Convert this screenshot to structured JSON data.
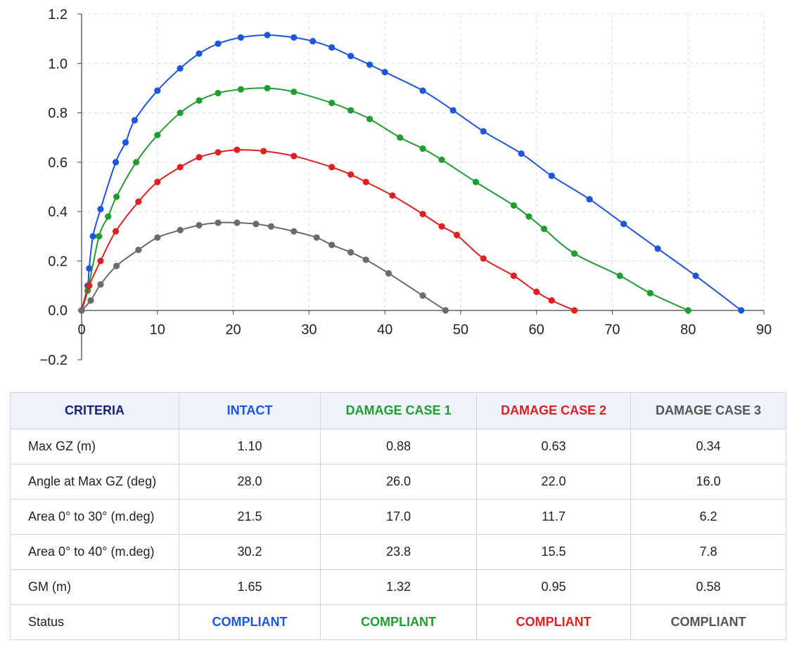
{
  "chart_data": {
    "type": "line",
    "title": "",
    "xlabel": "",
    "ylabel": "",
    "xlim": [
      0,
      90
    ],
    "ylim": [
      -0.2,
      1.2
    ],
    "x_ticks": [
      "0",
      "10",
      "20",
      "30",
      "40",
      "50",
      "60",
      "70",
      "80",
      "90"
    ],
    "y_ticks": [
      "−0.2",
      "0.0",
      "0.2",
      "0.4",
      "0.6",
      "0.8",
      "1.0",
      "1.2"
    ],
    "grid": true,
    "series": [
      {
        "color": "#1a56e0",
        "points": [
          [
            0,
            0
          ],
          [
            0.8,
            0.1
          ],
          [
            1,
            0.17
          ],
          [
            1.5,
            0.3
          ],
          [
            2.5,
            0.41
          ],
          [
            4.5,
            0.6
          ],
          [
            5.8,
            0.68
          ],
          [
            7,
            0.77
          ],
          [
            10,
            0.89
          ],
          [
            13,
            0.98
          ],
          [
            15.5,
            1.04
          ],
          [
            18,
            1.08
          ],
          [
            21,
            1.105
          ],
          [
            24.5,
            1.115
          ],
          [
            28,
            1.105
          ],
          [
            30.5,
            1.09
          ],
          [
            33,
            1.065
          ],
          [
            35.5,
            1.03
          ],
          [
            38,
            0.995
          ],
          [
            40,
            0.965
          ],
          [
            45,
            0.89
          ],
          [
            49,
            0.81
          ],
          [
            53,
            0.725
          ],
          [
            58,
            0.635
          ],
          [
            62,
            0.545
          ],
          [
            67,
            0.45
          ],
          [
            71.5,
            0.35
          ],
          [
            76,
            0.25
          ],
          [
            81,
            0.14
          ],
          [
            87,
            0
          ]
        ]
      },
      {
        "color": "#1f9e30",
        "points": [
          [
            0,
            0
          ],
          [
            0.8,
            0.08
          ],
          [
            2.3,
            0.3
          ],
          [
            3.5,
            0.38
          ],
          [
            4.6,
            0.46
          ],
          [
            7.2,
            0.6
          ],
          [
            10,
            0.71
          ],
          [
            13,
            0.8
          ],
          [
            15.5,
            0.85
          ],
          [
            18,
            0.88
          ],
          [
            21,
            0.895
          ],
          [
            24.5,
            0.9
          ],
          [
            28,
            0.885
          ],
          [
            33,
            0.84
          ],
          [
            35.5,
            0.81
          ],
          [
            38,
            0.775
          ],
          [
            42,
            0.7
          ],
          [
            45,
            0.655
          ],
          [
            47.5,
            0.61
          ],
          [
            52,
            0.52
          ],
          [
            57,
            0.425
          ],
          [
            59,
            0.38
          ],
          [
            61,
            0.33
          ],
          [
            65,
            0.23
          ],
          [
            71,
            0.14
          ],
          [
            75,
            0.07
          ],
          [
            80,
            0
          ]
        ]
      },
      {
        "color": "#e01f1f",
        "points": [
          [
            0,
            0
          ],
          [
            1,
            0.1
          ],
          [
            2.5,
            0.2
          ],
          [
            4.5,
            0.32
          ],
          [
            7.5,
            0.44
          ],
          [
            10,
            0.52
          ],
          [
            13,
            0.58
          ],
          [
            15.5,
            0.62
          ],
          [
            18,
            0.64
          ],
          [
            20.5,
            0.65
          ],
          [
            24,
            0.645
          ],
          [
            28,
            0.625
          ],
          [
            33,
            0.58
          ],
          [
            35.5,
            0.55
          ],
          [
            37.5,
            0.52
          ],
          [
            41,
            0.465
          ],
          [
            45,
            0.39
          ],
          [
            47.5,
            0.34
          ],
          [
            49.5,
            0.305
          ],
          [
            53,
            0.21
          ],
          [
            57,
            0.14
          ],
          [
            60,
            0.075
          ],
          [
            62,
            0.04
          ],
          [
            65,
            0
          ]
        ]
      },
      {
        "color": "#6b6b6b",
        "points": [
          [
            0,
            0
          ],
          [
            1.2,
            0.04
          ],
          [
            2.5,
            0.105
          ],
          [
            4.6,
            0.18
          ],
          [
            7.5,
            0.245
          ],
          [
            10,
            0.295
          ],
          [
            13,
            0.325
          ],
          [
            15.5,
            0.345
          ],
          [
            18,
            0.355
          ],
          [
            20.5,
            0.355
          ],
          [
            23,
            0.35
          ],
          [
            25,
            0.34
          ],
          [
            28,
            0.32
          ],
          [
            31,
            0.295
          ],
          [
            33,
            0.265
          ],
          [
            35.5,
            0.235
          ],
          [
            37.5,
            0.205
          ],
          [
            40.5,
            0.15
          ],
          [
            45,
            0.06
          ],
          [
            48,
            0
          ]
        ]
      }
    ]
  },
  "table": {
    "headers": [
      {
        "label": "CRITERIA",
        "color": "#1a237e"
      },
      {
        "label": "INTACT",
        "color": "#1a56e0"
      },
      {
        "label": "DAMAGE CASE 1",
        "color": "#1f9e30"
      },
      {
        "label": "DAMAGE CASE 2",
        "color": "#e01f1f"
      },
      {
        "label": "DAMAGE CASE 3",
        "color": "#555555"
      }
    ],
    "rows": [
      {
        "label": "Max GZ (m)",
        "values": [
          "1.10",
          "0.88",
          "0.63",
          "0.34"
        ]
      },
      {
        "label": "Angle at Max GZ (deg)",
        "values": [
          "28.0",
          "26.0",
          "22.0",
          "16.0"
        ]
      },
      {
        "label": "Area 0° to 30° (m.deg)",
        "values": [
          "21.5",
          "17.0",
          "11.7",
          "6.2"
        ]
      },
      {
        "label": "Area 0° to 40° (m.deg)",
        "values": [
          "30.2",
          "23.8",
          "15.5",
          "7.8"
        ]
      },
      {
        "label": "GM (m)",
        "values": [
          "1.65",
          "1.32",
          "0.95",
          "0.58"
        ]
      }
    ],
    "status": {
      "label": "Status",
      "values": [
        "COMPLIANT",
        "COMPLIANT",
        "COMPLIANT",
        "COMPLIANT"
      ]
    }
  }
}
